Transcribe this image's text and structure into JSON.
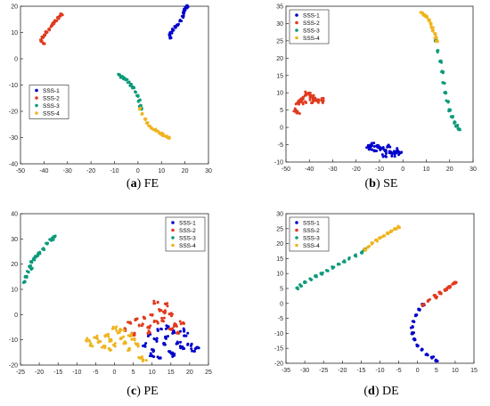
{
  "figure": {
    "captions": [
      {
        "id": "a",
        "label": "a",
        "text": "FE"
      },
      {
        "id": "b",
        "label": "b",
        "text": "SE"
      },
      {
        "id": "c",
        "label": "c",
        "text": "PE"
      },
      {
        "id": "d",
        "label": "d",
        "text": "DE"
      }
    ]
  },
  "colors": {
    "SSS-1": "#0000cc",
    "SSS-2": "#e03a1e",
    "SSS-3": "#0c9a7a",
    "SSS-4": "#f0b41e",
    "axis": "#262626",
    "grid": "#ffffff"
  },
  "chart_data": [
    {
      "type": "scatter",
      "panel": "a",
      "xlim": [
        -50,
        30
      ],
      "ylim": [
        -40,
        20
      ],
      "xticks": [
        "-50",
        "-40",
        "-30",
        "-20",
        "-10",
        "0",
        "10",
        "20",
        "30"
      ],
      "yticks": [
        "-40",
        "-30",
        "-20",
        "-10",
        "0",
        "10",
        "20"
      ],
      "legend_position": "bottom-left",
      "series": [
        {
          "name": "SSS-1",
          "cluster": "curve",
          "points": [
            [
              14,
              8
            ],
            [
              13.5,
              9
            ],
            [
              14,
              10
            ],
            [
              15,
              11
            ],
            [
              16,
              12
            ],
            [
              17,
              13
            ],
            [
              18,
              14.5
            ],
            [
              19,
              16
            ],
            [
              19.5,
              17.5
            ],
            [
              20,
              18.5
            ],
            [
              20.5,
              19.5
            ],
            [
              21,
              20
            ]
          ]
        },
        {
          "name": "SSS-2",
          "cluster": "curve",
          "points": [
            [
              -40,
              6
            ],
            [
              -41,
              7
            ],
            [
              -40.5,
              8
            ],
            [
              -39.5,
              9
            ],
            [
              -39,
              10
            ],
            [
              -38,
              11
            ],
            [
              -37,
              12.5
            ],
            [
              -36,
              13.5
            ],
            [
              -35,
              14.5
            ],
            [
              -34,
              15.5
            ],
            [
              -33,
              16.5
            ],
            [
              -32.5,
              17
            ]
          ]
        },
        {
          "name": "SSS-3",
          "cluster": "curve",
          "points": [
            [
              -8,
              -6
            ],
            [
              -7,
              -7
            ],
            [
              -6,
              -7.5
            ],
            [
              -5,
              -8
            ],
            [
              -4,
              -9
            ],
            [
              -3,
              -10
            ],
            [
              -2,
              -11
            ],
            [
              -1,
              -12.5
            ],
            [
              0,
              -14
            ],
            [
              0.5,
              -16
            ],
            [
              1,
              -18
            ],
            [
              1.5,
              -19
            ]
          ]
        },
        {
          "name": "SSS-4",
          "cluster": "curve",
          "points": [
            [
              1,
              -19
            ],
            [
              2,
              -21
            ],
            [
              3,
              -23
            ],
            [
              4,
              -24.5
            ],
            [
              5,
              -25.5
            ],
            [
              6,
              -26.5
            ],
            [
              7,
              -27
            ],
            [
              8,
              -27.5
            ],
            [
              9,
              -28
            ],
            [
              10,
              -28.5
            ],
            [
              11,
              -29
            ],
            [
              12,
              -29.5
            ],
            [
              13,
              -30
            ]
          ]
        }
      ]
    },
    {
      "type": "scatter",
      "panel": "b",
      "xlim": [
        -50,
        30
      ],
      "ylim": [
        -10,
        35
      ],
      "xticks": [
        "-50",
        "-40",
        "-30",
        "-20",
        "-10",
        "0",
        "10",
        "20",
        "30"
      ],
      "yticks": [
        "-10",
        "-5",
        "0",
        "5",
        "10",
        "15",
        "20",
        "25",
        "30",
        "35"
      ],
      "legend_position": "top-left",
      "series": [
        {
          "name": "SSS-1",
          "cluster": "blob",
          "points": [
            [
              -15,
              -5.5
            ],
            [
              -13,
              -5
            ],
            [
              -11,
              -5.5
            ],
            [
              -9,
              -6
            ],
            [
              -7,
              -6.5
            ],
            [
              -5,
              -7
            ],
            [
              -3,
              -7
            ],
            [
              -1,
              -7.5
            ],
            [
              -12,
              -7
            ],
            [
              -8,
              -8
            ],
            [
              -4,
              -8
            ],
            [
              -10,
              -6
            ],
            [
              -6,
              -5.5
            ],
            [
              -2,
              -6.5
            ],
            [
              -14,
              -6
            ]
          ]
        },
        {
          "name": "SSS-2",
          "cluster": "blob",
          "points": [
            [
              -46,
              5
            ],
            [
              -45,
              6.5
            ],
            [
              -44,
              7.5
            ],
            [
              -43,
              8.5
            ],
            [
              -42,
              9.5
            ],
            [
              -41,
              10
            ],
            [
              -40,
              9.5
            ],
            [
              -39,
              9
            ],
            [
              -38,
              8.5
            ],
            [
              -37,
              8
            ],
            [
              -36,
              7.5
            ],
            [
              -35,
              7.5
            ],
            [
              -34,
              8
            ],
            [
              -45,
              4.5
            ],
            [
              -42,
              7
            ],
            [
              -39,
              7.5
            ]
          ]
        },
        {
          "name": "SSS-3",
          "cluster": "curve",
          "points": [
            [
              14,
              25
            ],
            [
              15,
              22
            ],
            [
              16,
              19
            ],
            [
              17,
              16
            ],
            [
              17.5,
              13
            ],
            [
              18,
              10
            ],
            [
              19,
              7.5
            ],
            [
              20,
              5
            ],
            [
              21,
              3
            ],
            [
              22,
              1.5
            ],
            [
              23,
              0.5
            ],
            [
              24,
              -0.5
            ]
          ]
        },
        {
          "name": "SSS-4",
          "cluster": "curve",
          "points": [
            [
              8,
              33
            ],
            [
              9,
              32.5
            ],
            [
              10,
              32
            ],
            [
              11,
              31
            ],
            [
              12,
              30
            ],
            [
              12.5,
              29
            ],
            [
              13,
              28
            ],
            [
              13.5,
              27
            ],
            [
              14,
              26
            ],
            [
              14.5,
              25
            ]
          ]
        }
      ]
    },
    {
      "type": "scatter",
      "panel": "c",
      "xlim": [
        -25,
        25
      ],
      "ylim": [
        -20,
        40
      ],
      "xticks": [
        "-25",
        "-20",
        "-15",
        "-10",
        "-5",
        "0",
        "5",
        "10",
        "15",
        "20",
        "25"
      ],
      "yticks": [
        "-20",
        "-10",
        "0",
        "10",
        "20",
        "30",
        "40"
      ],
      "legend_position": "top-right",
      "series": [
        {
          "name": "SSS-1",
          "cluster": "blob",
          "points": [
            [
              8,
              -12
            ],
            [
              9,
              -8
            ],
            [
              10,
              -14
            ],
            [
              11,
              -10
            ],
            [
              12,
              -6
            ],
            [
              13,
              -12
            ],
            [
              14,
              -9
            ],
            [
              15,
              -15
            ],
            [
              16,
              -7
            ],
            [
              17,
              -11
            ],
            [
              18,
              -13
            ],
            [
              19,
              -8
            ],
            [
              20,
              -12
            ],
            [
              21,
              -14
            ],
            [
              10,
              -16
            ],
            [
              12,
              -17
            ],
            [
              14,
              -5
            ],
            [
              16,
              -16
            ],
            [
              18,
              -6
            ],
            [
              22,
              -13
            ]
          ]
        },
        {
          "name": "SSS-2",
          "cluster": "blob",
          "points": [
            [
              3,
              -6
            ],
            [
              4,
              -3
            ],
            [
              5,
              -8
            ],
            [
              6,
              -2
            ],
            [
              7,
              -4
            ],
            [
              8,
              -1
            ],
            [
              9,
              -5
            ],
            [
              10,
              0
            ],
            [
              11,
              -3
            ],
            [
              12,
              2
            ],
            [
              13,
              -2
            ],
            [
              14,
              4
            ],
            [
              15,
              0
            ],
            [
              16,
              -4
            ],
            [
              17,
              -7
            ],
            [
              18,
              -3
            ],
            [
              11,
              5
            ],
            [
              13,
              1
            ],
            [
              9,
              -7
            ],
            [
              15,
              -6
            ]
          ]
        },
        {
          "name": "SSS-3",
          "cluster": "curve",
          "points": [
            [
              -24,
              13
            ],
            [
              -23.5,
              15
            ],
            [
              -23,
              17
            ],
            [
              -22.5,
              19
            ],
            [
              -22,
              21
            ],
            [
              -21.5,
              22
            ],
            [
              -21,
              23
            ],
            [
              -20,
              24.5
            ],
            [
              -19,
              26
            ],
            [
              -18,
              28
            ],
            [
              -17,
              29.5
            ],
            [
              -16,
              31
            ],
            [
              -16.5,
              30
            ],
            [
              -22,
              18
            ],
            [
              -20.5,
              23.5
            ]
          ]
        },
        {
          "name": "SSS-4",
          "cluster": "blob",
          "points": [
            [
              -7,
              -10
            ],
            [
              -6,
              -12
            ],
            [
              -5,
              -9
            ],
            [
              -4,
              -11
            ],
            [
              -3,
              -13
            ],
            [
              -2,
              -8
            ],
            [
              -1,
              -10
            ],
            [
              0,
              -12
            ],
            [
              1,
              -7
            ],
            [
              2,
              -9
            ],
            [
              3,
              -11
            ],
            [
              4,
              -14
            ],
            [
              5,
              -10
            ],
            [
              6,
              -12
            ],
            [
              7,
              -17
            ],
            [
              8,
              -18
            ],
            [
              0,
              -5
            ],
            [
              2,
              -6
            ],
            [
              -1,
              -14
            ],
            [
              4,
              -8
            ]
          ]
        }
      ]
    },
    {
      "type": "scatter",
      "panel": "d",
      "xlim": [
        -35,
        15
      ],
      "ylim": [
        -20,
        30
      ],
      "xticks": [
        "-35",
        "-30",
        "-25",
        "-20",
        "-15",
        "-10",
        "-5",
        "0",
        "5",
        "10",
        "15"
      ],
      "yticks": [
        "-20",
        "-15",
        "-10",
        "-5",
        "0",
        "5",
        "10",
        "15",
        "20",
        "25",
        "30"
      ],
      "legend_position": "top-left",
      "series": [
        {
          "name": "SSS-1",
          "cluster": "curve",
          "points": [
            [
              5,
              -19
            ],
            [
              4,
              -18
            ],
            [
              2.5,
              -17
            ],
            [
              1,
              -15.5
            ],
            [
              0,
              -14
            ],
            [
              -0.8,
              -12
            ],
            [
              -1.3,
              -10
            ],
            [
              -1.5,
              -8
            ],
            [
              -1.2,
              -6
            ],
            [
              -0.5,
              -4
            ],
            [
              0.5,
              -2
            ],
            [
              1.5,
              -0.5
            ]
          ]
        },
        {
          "name": "SSS-2",
          "cluster": "curve",
          "points": [
            [
              1.5,
              -0.5
            ],
            [
              3,
              1
            ],
            [
              4.5,
              2.5
            ],
            [
              6,
              3.5
            ],
            [
              7.5,
              4.5
            ],
            [
              8.5,
              5.5
            ],
            [
              9.5,
              6.5
            ],
            [
              10,
              7
            ],
            [
              5,
              2
            ],
            [
              8,
              5
            ]
          ]
        },
        {
          "name": "SSS-3",
          "cluster": "curve",
          "points": [
            [
              -32,
              5
            ],
            [
              -31,
              6
            ],
            [
              -30,
              7
            ],
            [
              -28.5,
              8
            ],
            [
              -27,
              9
            ],
            [
              -25.5,
              10
            ],
            [
              -24,
              11
            ],
            [
              -22.5,
              12
            ],
            [
              -21,
              13
            ],
            [
              -19.5,
              14
            ],
            [
              -18,
              15
            ],
            [
              -16.5,
              16
            ],
            [
              -15,
              17
            ],
            [
              -14,
              18
            ]
          ]
        },
        {
          "name": "SSS-4",
          "cluster": "curve",
          "points": [
            [
              -14,
              18
            ],
            [
              -13,
              19
            ],
            [
              -12,
              20
            ],
            [
              -11,
              21
            ],
            [
              -10,
              22
            ],
            [
              -9,
              22.5
            ],
            [
              -8,
              23.5
            ],
            [
              -7,
              24
            ],
            [
              -6,
              25
            ],
            [
              -5,
              25.5
            ]
          ]
        }
      ]
    }
  ]
}
